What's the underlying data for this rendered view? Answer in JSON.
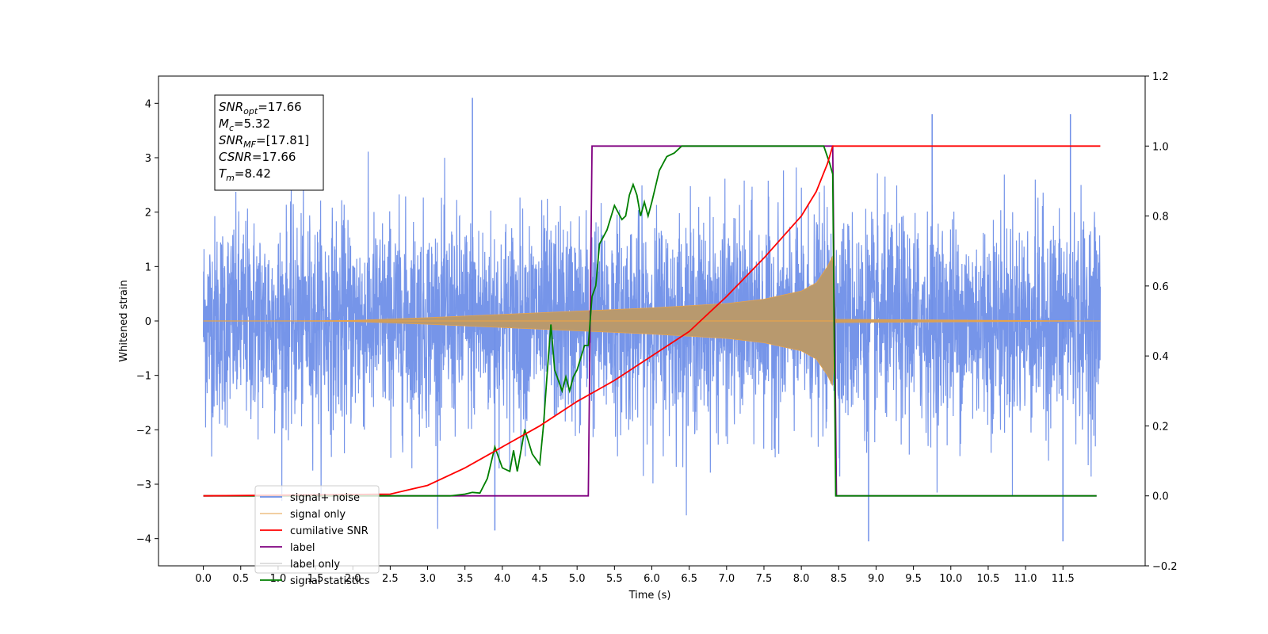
{
  "chart_data": {
    "type": "line",
    "title": "",
    "xlabel": "Time (s)",
    "ylabel": "Whitened strain",
    "xlim": [
      -0.6,
      12.6
    ],
    "ylim_left": [
      -4.5,
      4.5
    ],
    "ylim_right": [
      -0.2,
      1.2
    ],
    "x_ticks": [
      "0.0",
      "0.5",
      "1.0",
      "1.5",
      "2.0",
      "2.5",
      "3.0",
      "3.5",
      "4.0",
      "4.5",
      "5.0",
      "5.5",
      "6.0",
      "6.5",
      "7.0",
      "7.5",
      "8.0",
      "8.5",
      "9.0",
      "9.5",
      "10.0",
      "10.5",
      "11.0",
      "11.5"
    ],
    "y_ticks_left": [
      "4",
      "3",
      "2",
      "1",
      "0",
      "−1",
      "−2",
      "−3",
      "−4"
    ],
    "y_ticks_right": [
      "1.2",
      "1.0",
      "0.8",
      "0.6",
      "0.4",
      "0.2",
      "0.0",
      "−0.2"
    ],
    "grid": false,
    "legend_position": "lower-left",
    "info_box": [
      {
        "base": "SNR",
        "sub": "opt",
        "value": "=17.66"
      },
      {
        "base": "M",
        "sub": "c",
        "value": "=5.32"
      },
      {
        "base": "SNR",
        "sub": "MF",
        "value": "=[17.81]"
      },
      {
        "base": "CSNR",
        "sub": "",
        "value": "=17.66"
      },
      {
        "base": "T",
        "sub": "m",
        "value": "=8.42"
      }
    ],
    "series": [
      {
        "name": "signal+ noise",
        "color": "#6f8fe8",
        "axis": "left",
        "description_values": {
          "x_start": 0.0,
          "x_end": 12.0,
          "typical_amplitude": 2.2,
          "peak_values": [
            [
              3.6,
              4.1
            ],
            [
              3.9,
              -3.85
            ],
            [
              8.9,
              -4.05
            ],
            [
              11.5,
              -4.05
            ],
            [
              9.75,
              3.8
            ],
            [
              11.6,
              3.8
            ]
          ]
        }
      },
      {
        "name": "signal only",
        "color": "#e6a34c",
        "axis": "left",
        "envelope": {
          "x": [
            0.0,
            1.0,
            2.0,
            3.0,
            4.0,
            5.0,
            6.0,
            7.0,
            7.5,
            8.0,
            8.2,
            8.35,
            8.42,
            8.45,
            12.0
          ],
          "amp": [
            0.0,
            0.0,
            0.01,
            0.06,
            0.12,
            0.18,
            0.24,
            0.32,
            0.4,
            0.55,
            0.7,
            1.0,
            1.2,
            0.03,
            0.0
          ]
        }
      },
      {
        "name": "cumilative SNR",
        "color": "#ff0000",
        "axis": "right",
        "x": [
          0.0,
          2.5,
          3.0,
          3.5,
          4.0,
          4.5,
          5.0,
          5.5,
          6.0,
          6.5,
          7.0,
          7.5,
          8.0,
          8.2,
          8.35,
          8.42,
          12.0
        ],
        "y": [
          0.0,
          0.005,
          0.03,
          0.08,
          0.14,
          0.2,
          0.27,
          0.33,
          0.4,
          0.47,
          0.57,
          0.68,
          0.8,
          0.87,
          0.95,
          1.0,
          1.0
        ]
      },
      {
        "name": "label",
        "color": "#800080",
        "axis": "right",
        "x": [
          0.0,
          5.15,
          5.2,
          8.42,
          8.47,
          11.95
        ],
        "y": [
          0.0,
          0.0,
          1.0,
          1.0,
          0.0,
          0.0
        ]
      },
      {
        "name": "label only",
        "color": "#cccccc",
        "axis": "right",
        "hidden_in_plot": true
      },
      {
        "name": "signal statistics",
        "color": "#007f00",
        "axis": "right",
        "x": [
          0.0,
          3.3,
          3.5,
          3.6,
          3.7,
          3.8,
          3.9,
          4.0,
          4.1,
          4.15,
          4.2,
          4.3,
          4.4,
          4.5,
          4.55,
          4.6,
          4.65,
          4.7,
          4.8,
          4.85,
          4.9,
          4.95,
          5.0,
          5.1,
          5.15,
          5.2,
          5.25,
          5.3,
          5.4,
          5.5,
          5.6,
          5.65,
          5.7,
          5.75,
          5.8,
          5.85,
          5.9,
          5.95,
          6.0,
          6.1,
          6.2,
          6.3,
          6.4,
          6.5,
          6.6,
          6.8,
          8.3,
          8.38,
          8.42,
          8.46,
          11.95
        ],
        "y": [
          0.0,
          0.0,
          0.005,
          0.01,
          0.008,
          0.05,
          0.14,
          0.08,
          0.07,
          0.13,
          0.07,
          0.19,
          0.12,
          0.09,
          0.2,
          0.35,
          0.49,
          0.36,
          0.3,
          0.34,
          0.3,
          0.34,
          0.36,
          0.43,
          0.43,
          0.57,
          0.6,
          0.72,
          0.76,
          0.83,
          0.79,
          0.8,
          0.86,
          0.89,
          0.86,
          0.8,
          0.84,
          0.8,
          0.84,
          0.93,
          0.97,
          0.98,
          1.0,
          1.0,
          1.0,
          1.0,
          1.0,
          0.95,
          0.92,
          0.0,
          0.0
        ]
      }
    ]
  }
}
